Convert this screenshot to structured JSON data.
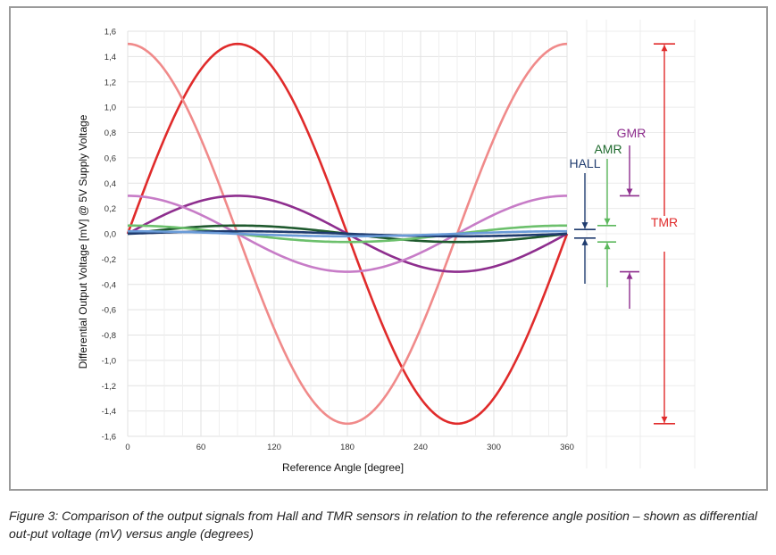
{
  "chart_data": {
    "type": "line",
    "title": "",
    "xlabel": "Reference Angle [degree]",
    "ylabel": "Differential Output Voltage [mV] @ 5V Supply Voltage",
    "xlim": [
      0,
      360
    ],
    "ylim": [
      -1.6,
      1.6
    ],
    "xticks": [
      "0",
      "60",
      "120",
      "180",
      "240",
      "300",
      "360"
    ],
    "yticks": [
      "1,6",
      "1,4",
      "1,2",
      "1,0",
      "0,8",
      "0,6",
      "0,4",
      "0,2",
      "0,0",
      "-0,2",
      "-0,4",
      "-0,6",
      "-0,8",
      "-1,0",
      "-1,2",
      "-1,4",
      "-1,6"
    ],
    "grid": true,
    "series": [
      {
        "name": "TMR sin",
        "color": "#e02b2b",
        "amplitude": 1.5,
        "wave": "sin"
      },
      {
        "name": "TMR cos",
        "color": "#f08a8a",
        "amplitude": 1.5,
        "wave": "cos"
      },
      {
        "name": "GMR sin",
        "color": "#8e2e8e",
        "amplitude": 0.3,
        "wave": "sin"
      },
      {
        "name": "GMR cos",
        "color": "#c77cc7",
        "amplitude": 0.3,
        "wave": "cos"
      },
      {
        "name": "AMR sin",
        "color": "#1f5a2e",
        "amplitude": 0.065,
        "wave": "sin"
      },
      {
        "name": "AMR cos",
        "color": "#6cc06c",
        "amplitude": 0.065,
        "wave": "cos"
      },
      {
        "name": "HALL sin",
        "color": "#1f3b6e",
        "amplitude": 0.02,
        "wave": "sin"
      },
      {
        "name": "HALL cos",
        "color": "#6a9bd8",
        "amplitude": 0.02,
        "wave": "cos"
      }
    ],
    "annotations": [
      {
        "label": "TMR",
        "color": "#e02b2b",
        "amplitude": 1.5
      },
      {
        "label": "GMR",
        "color": "#8e2e8e",
        "amplitude": 0.3
      },
      {
        "label": "AMR",
        "color": "#1f6a2e",
        "amplitude": 0.065
      },
      {
        "label": "HALL",
        "color": "#1f3b6e",
        "amplitude": 0.02
      }
    ]
  },
  "caption": "Figure 3: Comparison of the output signals from Hall and TMR sensors in relation to the reference angle position – shown as differential out-put voltage (mV) versus angle (degrees)"
}
